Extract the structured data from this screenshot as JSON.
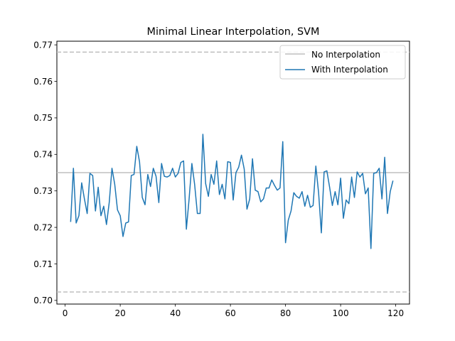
{
  "chart_data": {
    "type": "line",
    "title": "Minimal Linear Interpolation, SVM",
    "xlabel": "",
    "ylabel": "",
    "xlim": [
      -3,
      125
    ],
    "ylim": [
      0.699,
      0.771
    ],
    "x_ticks": [
      0,
      20,
      40,
      60,
      80,
      100,
      120
    ],
    "y_ticks": [
      0.7,
      0.71,
      0.72,
      0.73,
      0.74,
      0.75,
      0.76,
      0.77
    ],
    "x_tick_labels": [
      "0",
      "20",
      "40",
      "60",
      "80",
      "100",
      "120"
    ],
    "y_tick_labels": [
      "0.70",
      "0.71",
      "0.72",
      "0.73",
      "0.74",
      "0.75",
      "0.76",
      "0.77"
    ],
    "grid": false,
    "legend_position": "top-right",
    "reference_lines": {
      "baseline": {
        "name": "No Interpolation",
        "value": 0.735,
        "color": "#bfbfbf",
        "style": "solid"
      },
      "upper_bound": {
        "value": 0.768,
        "color": "#bfbfbf",
        "style": "dashed"
      },
      "lower_bound": {
        "value": 0.7023,
        "color": "#bfbfbf",
        "style": "dashed"
      }
    },
    "series": [
      {
        "name": "With Interpolation",
        "color": "#1f77b4",
        "x_start": 2,
        "x_step": 1,
        "values": [
          0.7215,
          0.7362,
          0.7212,
          0.7232,
          0.7322,
          0.7278,
          0.7238,
          0.7348,
          0.7342,
          0.7245,
          0.731,
          0.7232,
          0.7258,
          0.7208,
          0.7268,
          0.7362,
          0.7318,
          0.7248,
          0.7232,
          0.7175,
          0.7212,
          0.7215,
          0.7342,
          0.7345,
          0.7422,
          0.738,
          0.7282,
          0.7262,
          0.7345,
          0.7312,
          0.7362,
          0.734,
          0.7268,
          0.7375,
          0.734,
          0.7338,
          0.7342,
          0.7362,
          0.7338,
          0.7348,
          0.7378,
          0.7382,
          0.7195,
          0.7278,
          0.7375,
          0.7318,
          0.7238,
          0.7238,
          0.7455,
          0.732,
          0.7285,
          0.7345,
          0.7318,
          0.7382,
          0.729,
          0.7318,
          0.7278,
          0.738,
          0.7378,
          0.7275,
          0.735,
          0.7365,
          0.7398,
          0.736,
          0.725,
          0.7278,
          0.7388,
          0.7302,
          0.7298,
          0.727,
          0.7278,
          0.7308,
          0.7308,
          0.733,
          0.7315,
          0.7302,
          0.7308,
          0.7435,
          0.7158,
          0.722,
          0.7245,
          0.7295,
          0.7285,
          0.728,
          0.7298,
          0.7258,
          0.7288,
          0.7255,
          0.726,
          0.7368,
          0.7295,
          0.7185,
          0.7352,
          0.7355,
          0.731,
          0.726,
          0.7298,
          0.7262,
          0.7335,
          0.7225,
          0.7275,
          0.7265,
          0.7338,
          0.7282,
          0.7352,
          0.7338,
          0.7348,
          0.7292,
          0.7308,
          0.7142,
          0.7348,
          0.735,
          0.7362,
          0.7278,
          0.7392,
          0.7238,
          0.7298,
          0.7328
        ]
      }
    ]
  }
}
